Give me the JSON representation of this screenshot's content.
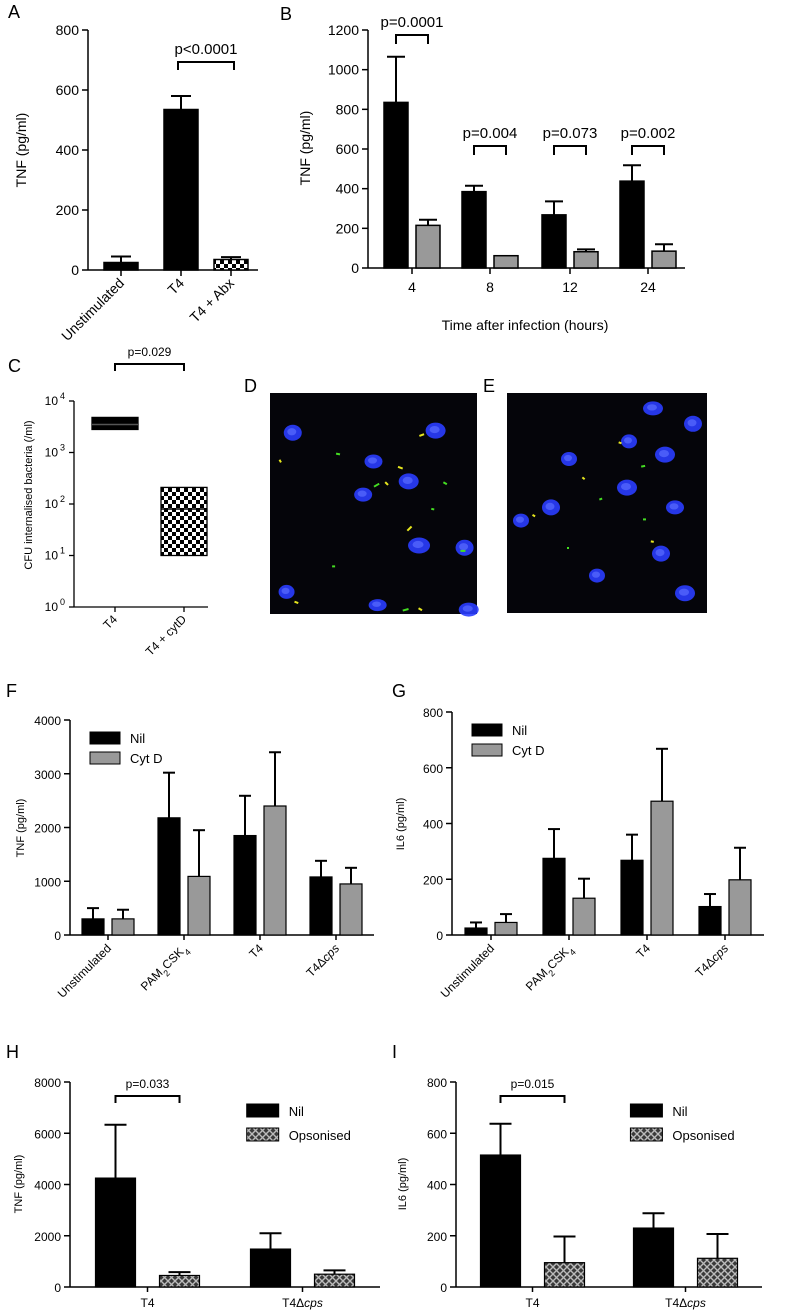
{
  "figure": {
    "panels": [
      "A",
      "B",
      "C",
      "D",
      "E",
      "F",
      "G",
      "H",
      "I"
    ]
  },
  "colors": {
    "nil": "#000000",
    "treated": "#999999",
    "microscopy_bg": "#05050a",
    "nucleus": "#2a3dff",
    "bacteria_green": "#44dd22",
    "bacteria_yellow": "#e6e61e"
  },
  "chart_data": [
    {
      "panel": "A",
      "type": "bar",
      "ylabel": "TNF (pg/ml)",
      "ylim": [
        0,
        800
      ],
      "yticks": [
        0,
        200,
        400,
        600,
        800
      ],
      "categories": [
        "Unstimulated",
        "T4",
        "T4 + Abx"
      ],
      "values": [
        25,
        535,
        35
      ],
      "errors": [
        20,
        45,
        8
      ],
      "fills": [
        "solid",
        "solid",
        "checker"
      ],
      "comparisons": [
        {
          "from": 1,
          "to": 2,
          "label": "p<0.0001"
        }
      ]
    },
    {
      "panel": "B",
      "type": "bar",
      "ylabel": "TNF (pg/ml)",
      "xlabel": "Time after infection (hours)",
      "ylim": [
        0,
        1200
      ],
      "yticks": [
        0,
        200,
        400,
        600,
        800,
        1000,
        1200
      ],
      "categories": [
        "4",
        "8",
        "12",
        "24"
      ],
      "series": [
        {
          "values": [
            835,
            385,
            268,
            438
          ],
          "errors": [
            230,
            30,
            68,
            80
          ]
        },
        {
          "values": [
            215,
            62,
            82,
            85
          ],
          "errors": [
            28,
            0,
            12,
            35
          ]
        }
      ],
      "comparisons": [
        "p=0.0001",
        "p=0.004",
        "p=0.073",
        "p=0.002"
      ]
    },
    {
      "panel": "C",
      "type": "box",
      "ylabel": "CFU internalised bacteria (/ml)",
      "yscale": "log",
      "ylim": [
        1,
        10000
      ],
      "ytick_base": "10",
      "ytick_exponents": [
        "0",
        "1",
        "2",
        "3",
        "4"
      ],
      "categories": [
        "T4",
        "T4 + cytD"
      ],
      "boxes": [
        {
          "min": 2800,
          "median": 3500,
          "max": 4800,
          "fill": "solid"
        },
        {
          "min": 10,
          "median": 80,
          "max": 210,
          "fill": "checker"
        }
      ],
      "comparisons": [
        {
          "from": 0,
          "to": 1,
          "label": "p=0.029"
        }
      ]
    },
    {
      "panel": "F",
      "type": "bar",
      "ylabel": "TNF (pg/ml)",
      "ylim": [
        0,
        4000
      ],
      "yticks": [
        0,
        1000,
        2000,
        3000,
        4000
      ],
      "categories": [
        "Unstimulated",
        "PAM2CSK4",
        "T4",
        "T4Δcps"
      ],
      "series": [
        {
          "name": "Nil",
          "values": [
            300,
            2180,
            1850,
            1080
          ],
          "errors": [
            200,
            840,
            740,
            300
          ]
        },
        {
          "name": "Cyt D",
          "values": [
            300,
            1090,
            2400,
            950
          ],
          "errors": [
            170,
            860,
            1000,
            300
          ]
        }
      ],
      "legend": "top-left"
    },
    {
      "panel": "G",
      "type": "bar",
      "ylabel": "IL6 (pg/ml)",
      "ylim": [
        0,
        800
      ],
      "yticks": [
        0,
        200,
        400,
        600,
        800
      ],
      "categories": [
        "Unstimulated",
        "PAM2CSK4",
        "T4",
        "T4Δcps"
      ],
      "series": [
        {
          "name": "Nil",
          "values": [
            25,
            275,
            268,
            102
          ],
          "errors": [
            20,
            105,
            92,
            45
          ]
        },
        {
          "name": "Cyt D",
          "values": [
            45,
            132,
            480,
            198
          ],
          "errors": [
            30,
            70,
            188,
            115
          ]
        }
      ],
      "legend": "top-left"
    },
    {
      "panel": "H",
      "type": "bar",
      "ylabel": "TNF (pg/ml)",
      "ylim": [
        0,
        8000
      ],
      "yticks": [
        0,
        2000,
        4000,
        6000,
        8000
      ],
      "categories": [
        "T4",
        "T4Δcps"
      ],
      "series": [
        {
          "name": "Nil",
          "values": [
            4250,
            1480
          ],
          "errors": [
            2080,
            620
          ],
          "fill": "solid"
        },
        {
          "name": "Opsonised",
          "values": [
            450,
            500
          ],
          "errors": [
            130,
            150
          ],
          "fill": "crosshatch"
        }
      ],
      "comparisons": [
        {
          "category": 0,
          "label": "p=0.033"
        }
      ],
      "legend": "top-right"
    },
    {
      "panel": "I",
      "type": "bar",
      "ylabel": "IL6 (pg/ml)",
      "ylim": [
        0,
        800
      ],
      "yticks": [
        0,
        200,
        400,
        600,
        800
      ],
      "categories": [
        "T4",
        "T4Δcps"
      ],
      "series": [
        {
          "name": "Nil",
          "values": [
            515,
            230
          ],
          "errors": [
            122,
            58
          ],
          "fill": "solid"
        },
        {
          "name": "Opsonised",
          "values": [
            95,
            112
          ],
          "errors": [
            102,
            95
          ],
          "fill": "crosshatch"
        }
      ],
      "comparisons": [
        {
          "category": 0,
          "label": "p=0.015"
        }
      ],
      "legend": "top-right"
    }
  ]
}
